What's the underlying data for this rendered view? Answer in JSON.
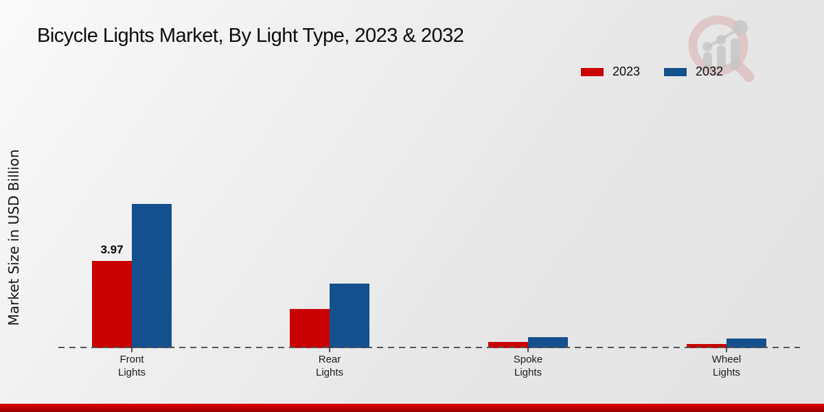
{
  "title": "Bicycle Lights Market, By Light Type, 2023 & 2032",
  "y_axis_label": "Market Size in USD Billion",
  "legend": {
    "items": [
      {
        "label": "2023",
        "color": "#c80202"
      },
      {
        "label": "2032",
        "color": "#14508e"
      }
    ]
  },
  "chart_data": {
    "type": "bar",
    "title": "Bicycle Lights Market, By Light Type, 2023 & 2032",
    "categories": [
      "Front Lights",
      "Rear Lights",
      "Spoke Lights",
      "Wheel Lights"
    ],
    "series": [
      {
        "name": "2023",
        "color": "#c80202",
        "values": [
          3.97,
          1.78,
          0.28,
          0.19
        ]
      },
      {
        "name": "2032",
        "color": "#14508e",
        "values": [
          6.56,
          2.94,
          0.5,
          0.44
        ]
      }
    ],
    "annotations": [
      {
        "series_index": 0,
        "category_index": 0,
        "text": "3.97"
      }
    ],
    "xlabel": "",
    "ylabel": "Market Size in USD Billion",
    "ylim": [
      0,
      7.2
    ],
    "grid": false,
    "legend_position": "top-right",
    "baseline_style": "dashed"
  },
  "watermark": {
    "name": "market-research-magnifier-logo"
  },
  "footer": {
    "accent_color": "#c00000"
  }
}
